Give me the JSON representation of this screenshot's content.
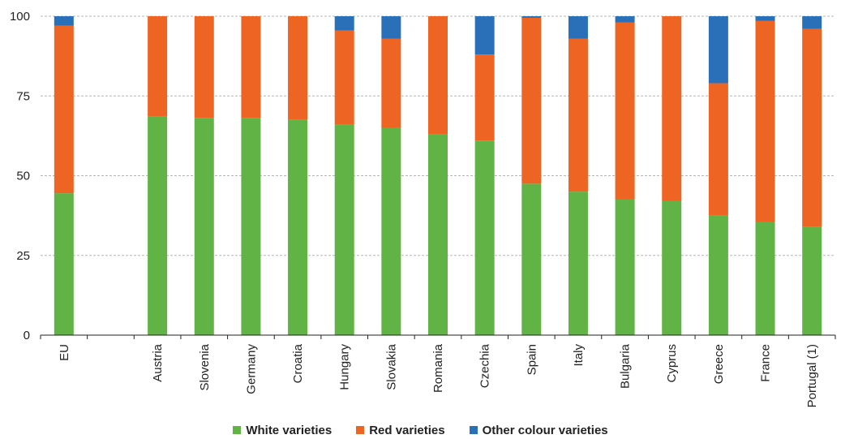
{
  "chart_data": {
    "type": "bar",
    "stacked": true,
    "title": "",
    "xlabel": "",
    "ylabel": "",
    "ylim": [
      0,
      100
    ],
    "yticks": [
      0,
      25,
      50,
      75,
      100
    ],
    "grid": true,
    "legend_position": "bottom",
    "categories": [
      "EU",
      "",
      "Austria",
      "Slovenia",
      "Germany",
      "Croatia",
      "Hungary",
      "Slovakia",
      "Romania",
      "Czechia",
      "Spain",
      "Italy",
      "Bulgaria",
      "Cyprus",
      "Greece",
      "France",
      "Portugal (1)"
    ],
    "series": [
      {
        "name": "White varieties",
        "color": "#62b345",
        "values": [
          44.5,
          null,
          68.5,
          68.0,
          68.0,
          67.5,
          66.0,
          65.0,
          63.0,
          61.0,
          47.5,
          45.0,
          42.5,
          42.0,
          37.5,
          35.5,
          34.0
        ]
      },
      {
        "name": "Red varieties",
        "color": "#ee6423",
        "values": [
          52.5,
          null,
          31.5,
          32.0,
          32.0,
          32.5,
          29.5,
          28.0,
          37.0,
          27.0,
          52.0,
          48.0,
          55.5,
          58.0,
          41.5,
          63.0,
          62.0
        ]
      },
      {
        "name": "Other colour varieties",
        "color": "#2a70b8",
        "values": [
          3.0,
          null,
          0.0,
          0.0,
          0.0,
          0.0,
          4.5,
          7.0,
          0.0,
          12.0,
          0.5,
          7.0,
          2.0,
          0.0,
          21.0,
          1.5,
          4.0
        ]
      }
    ]
  }
}
